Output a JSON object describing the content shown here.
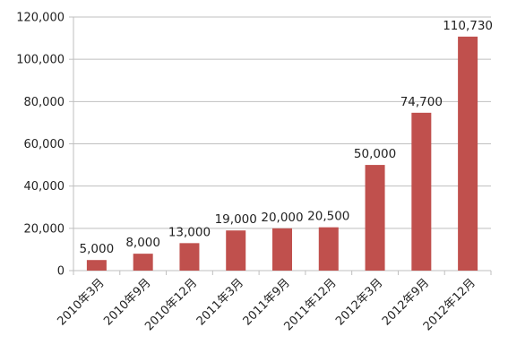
{
  "chart_data": {
    "type": "bar",
    "title": "",
    "xlabel": "",
    "ylabel": "",
    "categories": [
      "2010年3月",
      "2010年9月",
      "2010年12月",
      "2011年3月",
      "2011年9月",
      "2011年12月",
      "2012年3月",
      "2012年9月",
      "2012年12月"
    ],
    "values": [
      5000,
      8000,
      13000,
      19000,
      20000,
      20500,
      50000,
      74700,
      110730
    ],
    "data_labels": [
      "5,000",
      "8,000",
      "13,000",
      "19,000",
      "20,000",
      "20,500",
      "50,000",
      "74,700",
      "110,730"
    ],
    "ylim": [
      0,
      120000
    ],
    "yticks": [
      0,
      20000,
      40000,
      60000,
      80000,
      100000,
      120000
    ],
    "ytick_labels": [
      "0",
      "20,000",
      "40,000",
      "60,000",
      "80,000",
      "100,000",
      "120,000"
    ],
    "grid": true,
    "legend": "none",
    "colors": {
      "bar": "#c0504d",
      "grid": "#bfbfbf",
      "axis": "#bfbfbf",
      "text": "#222222"
    }
  }
}
